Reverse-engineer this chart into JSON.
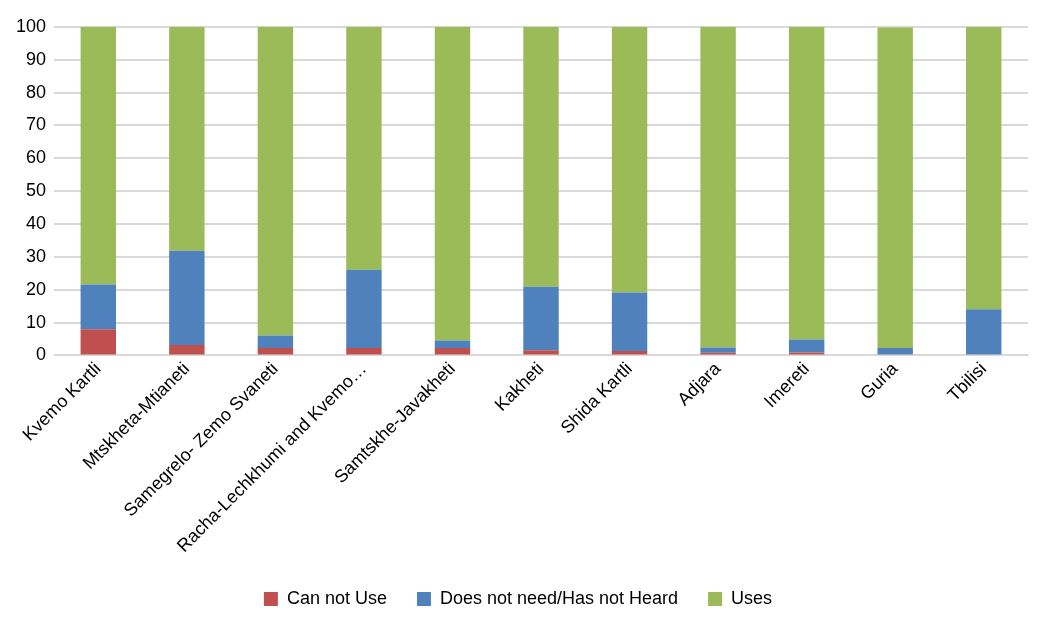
{
  "chart_data": {
    "type": "bar",
    "stacked": true,
    "categories": [
      "Kvemo Kartli",
      "Mtskheta-Mtianeti",
      "Samegrelo- Zemo Svaneti",
      "Racha-Lechkhumi and Kvemo…",
      "Samtskhe-Javakheti",
      "Kakheti",
      "Shida Kartli",
      "Adjara",
      "Imereti",
      "Guria",
      "Tbilisi"
    ],
    "series": [
      {
        "name": "Can not Use",
        "color": "#c0504d",
        "values": [
          8,
          3.2,
          2.3,
          2.3,
          2.3,
          1.6,
          1.4,
          0.8,
          0.9,
          null,
          0
        ]
      },
      {
        "name": "Does not need/Has not Heard",
        "color": "#4f81bd",
        "values": [
          13.6,
          28.7,
          3.8,
          23.8,
          2.3,
          19.3,
          17.8,
          1.6,
          4,
          2.3,
          14.1
        ]
      },
      {
        "name": "Uses",
        "color": "#9bbb59",
        "values": [
          78.4,
          68.1,
          93.9,
          73.9,
          95.4,
          79.1,
          80.8,
          97.6,
          95.1,
          97.5,
          85.9
        ]
      }
    ],
    "ylim": [
      0,
      100
    ],
    "yticks": [
      0,
      10,
      20,
      30,
      40,
      50,
      60,
      70,
      80,
      90,
      100
    ],
    "grid": "y",
    "legend": "bottom"
  }
}
